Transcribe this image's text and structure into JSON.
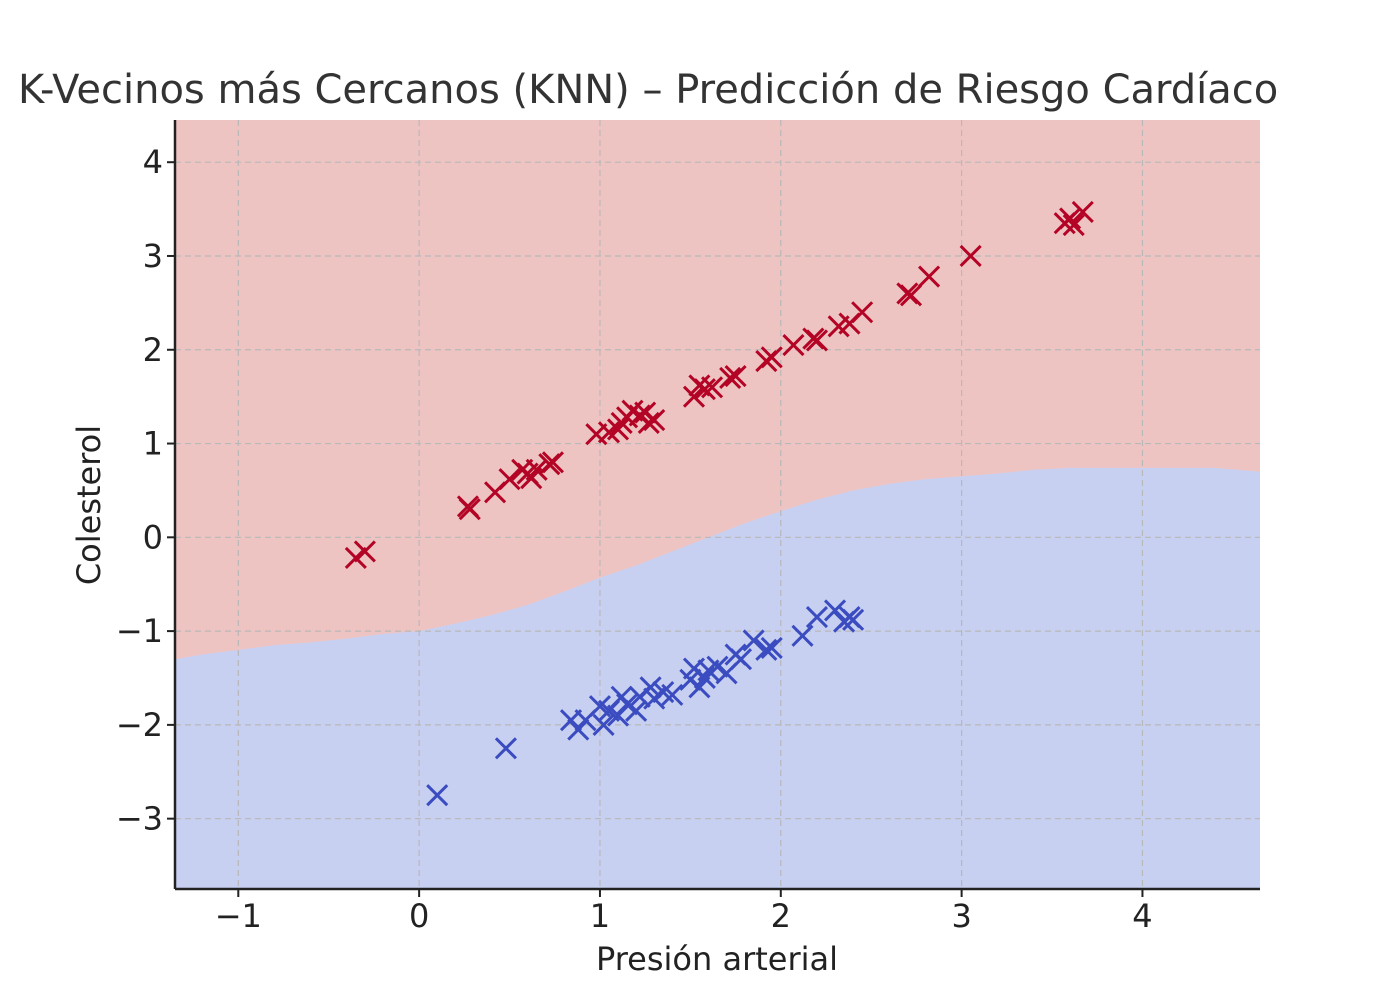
{
  "chart_data": {
    "type": "scatter",
    "title": "K-Vecinos más Cercanos (KNN) – Predicción de Riesgo Cardíaco",
    "xlabel": "Presión arterial",
    "ylabel": "Colesterol",
    "xlim": [
      -1.35,
      4.65
    ],
    "ylim": [
      -3.75,
      4.45
    ],
    "xticks": [
      -1,
      0,
      1,
      2,
      3,
      4
    ],
    "yticks": [
      -3,
      -2,
      -1,
      0,
      1,
      2,
      3,
      4
    ],
    "xtick_labels": [
      "−1",
      "0",
      "1",
      "2",
      "3",
      "4"
    ],
    "ytick_labels": [
      "−3",
      "−2",
      "−1",
      "0",
      "1",
      "2",
      "3",
      "4"
    ],
    "grid": true,
    "marker": "x",
    "region_colors": {
      "high": "#eec4c3",
      "low": "#c8d0f1"
    },
    "decision_boundary": {
      "x": [
        -1.35,
        -1.2,
        -1.0,
        -0.8,
        -0.6,
        -0.4,
        -0.2,
        0.0,
        0.2,
        0.4,
        0.6,
        0.8,
        1.0,
        1.2,
        1.4,
        1.6,
        1.8,
        2.0,
        2.2,
        2.4,
        2.6,
        2.8,
        3.0,
        3.2,
        3.4,
        3.6,
        3.8,
        4.0,
        4.2,
        4.4,
        4.65
      ],
      "y": [
        -1.3,
        -1.25,
        -1.2,
        -1.15,
        -1.12,
        -1.08,
        -1.03,
        -1.0,
        -0.92,
        -0.83,
        -0.72,
        -0.58,
        -0.43,
        -0.3,
        -0.15,
        0.0,
        0.15,
        0.28,
        0.4,
        0.5,
        0.57,
        0.62,
        0.65,
        0.68,
        0.72,
        0.74,
        0.74,
        0.74,
        0.74,
        0.74,
        0.7
      ]
    },
    "series": [
      {
        "color": "#b40426",
        "points": [
          [
            -0.35,
            -0.22
          ],
          [
            -0.3,
            -0.15
          ],
          [
            0.27,
            0.33
          ],
          [
            0.28,
            0.3
          ],
          [
            0.42,
            0.48
          ],
          [
            0.5,
            0.62
          ],
          [
            0.57,
            0.72
          ],
          [
            0.6,
            0.68
          ],
          [
            0.62,
            0.63
          ],
          [
            0.65,
            0.72
          ],
          [
            0.72,
            0.78
          ],
          [
            0.74,
            0.8
          ],
          [
            0.98,
            1.1
          ],
          [
            1.05,
            1.12
          ],
          [
            1.1,
            1.15
          ],
          [
            1.12,
            1.22
          ],
          [
            1.15,
            1.28
          ],
          [
            1.18,
            1.35
          ],
          [
            1.22,
            1.3
          ],
          [
            1.25,
            1.33
          ],
          [
            1.27,
            1.22
          ],
          [
            1.3,
            1.25
          ],
          [
            1.52,
            1.5
          ],
          [
            1.55,
            1.62
          ],
          [
            1.58,
            1.58
          ],
          [
            1.62,
            1.6
          ],
          [
            1.72,
            1.7
          ],
          [
            1.75,
            1.72
          ],
          [
            1.92,
            1.88
          ],
          [
            1.95,
            1.92
          ],
          [
            2.07,
            2.05
          ],
          [
            2.18,
            2.12
          ],
          [
            2.2,
            2.1
          ],
          [
            2.32,
            2.25
          ],
          [
            2.38,
            2.28
          ],
          [
            2.45,
            2.4
          ],
          [
            2.7,
            2.6
          ],
          [
            2.72,
            2.58
          ],
          [
            2.82,
            2.78
          ],
          [
            3.05,
            3.0
          ],
          [
            3.57,
            3.35
          ],
          [
            3.6,
            3.4
          ],
          [
            3.62,
            3.33
          ],
          [
            3.67,
            3.47
          ]
        ]
      },
      {
        "color": "#3b4cc0",
        "points": [
          [
            0.1,
            -2.75
          ],
          [
            0.48,
            -2.25
          ],
          [
            0.84,
            -1.95
          ],
          [
            0.88,
            -2.05
          ],
          [
            0.92,
            -1.95
          ],
          [
            1.0,
            -1.8
          ],
          [
            1.02,
            -2.0
          ],
          [
            1.05,
            -1.85
          ],
          [
            1.1,
            -1.9
          ],
          [
            1.12,
            -1.7
          ],
          [
            1.15,
            -1.78
          ],
          [
            1.2,
            -1.85
          ],
          [
            1.22,
            -1.7
          ],
          [
            1.28,
            -1.6
          ],
          [
            1.3,
            -1.72
          ],
          [
            1.35,
            -1.65
          ],
          [
            1.4,
            -1.68
          ],
          [
            1.5,
            -1.52
          ],
          [
            1.52,
            -1.4
          ],
          [
            1.55,
            -1.6
          ],
          [
            1.58,
            -1.5
          ],
          [
            1.6,
            -1.42
          ],
          [
            1.65,
            -1.38
          ],
          [
            1.7,
            -1.45
          ],
          [
            1.75,
            -1.25
          ],
          [
            1.78,
            -1.3
          ],
          [
            1.85,
            -1.1
          ],
          [
            1.92,
            -1.2
          ],
          [
            1.95,
            -1.18
          ],
          [
            2.12,
            -1.05
          ],
          [
            2.2,
            -0.85
          ],
          [
            2.3,
            -0.78
          ],
          [
            2.35,
            -0.9
          ],
          [
            2.38,
            -0.85
          ],
          [
            2.4,
            -0.88
          ]
        ]
      }
    ]
  }
}
